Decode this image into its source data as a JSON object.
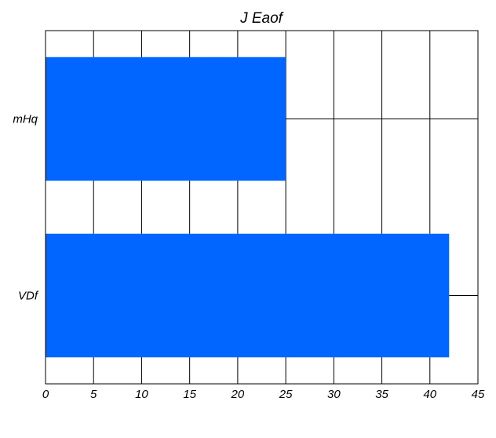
{
  "chart_data": {
    "type": "bar",
    "orientation": "horizontal",
    "title": "J  Eaof",
    "xlabel": "",
    "ylabel": "",
    "categories": [
      "mHq",
      "VDf"
    ],
    "values": [
      25,
      42
    ],
    "xlim": [
      0,
      45
    ],
    "x_ticks": [
      0,
      5,
      10,
      15,
      20,
      25,
      30,
      35,
      40,
      45
    ],
    "grid": true,
    "bar_color": "#0066ff",
    "grid_color": "#000000"
  }
}
